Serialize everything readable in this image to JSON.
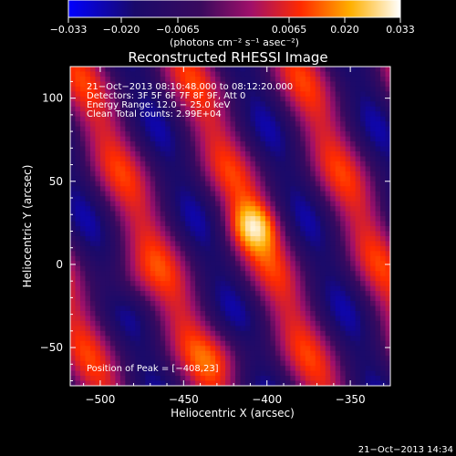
{
  "chart_data": {
    "type": "heatmap",
    "title": "Reconstructed RHESSI Image",
    "xlabel": "Heliocentric X (arcsec)",
    "ylabel": "Heliocentric Y (arcsec)",
    "xlim": [
      -518,
      -326
    ],
    "ylim": [
      -73,
      119
    ],
    "x_ticks": [
      {
        "value": -500,
        "label": "−500"
      },
      {
        "value": -450,
        "label": "−450"
      },
      {
        "value": -400,
        "label": "−400"
      },
      {
        "value": -350,
        "label": "−350"
      }
    ],
    "y_ticks": [
      {
        "value": -50,
        "label": "−50"
      },
      {
        "value": 0,
        "label": "0"
      },
      {
        "value": 50,
        "label": "50"
      },
      {
        "value": 100,
        "label": "100"
      }
    ],
    "colorbar": {
      "ticks": [
        "−0.033",
        "−0.020",
        "−0.0065",
        "0.0065",
        "0.020",
        "0.033"
      ],
      "range": [
        -0.033,
        0.033
      ],
      "unit_label": "(photons cm⁻² s⁻¹ asec⁻²)"
    },
    "annotations": [
      "21−Oct−2013 08:10:48.000 to 08:12:20.000",
      "Detectors: 3F 5F 6F 7F 8F 9F, Att 0",
      "Energy Range: 12.0 − 25.0 keV",
      "Clean     Total counts: 2.99E+04"
    ],
    "peak_label": "Position of Peak = [−408,23]",
    "peak": {
      "x": -408,
      "y": 23,
      "value": 0.033
    },
    "total_counts": "2.99E+04",
    "energy_range_kev": [
      12.0,
      25.0
    ],
    "footer_timestamp": "21−Oct−2013 14:34"
  }
}
